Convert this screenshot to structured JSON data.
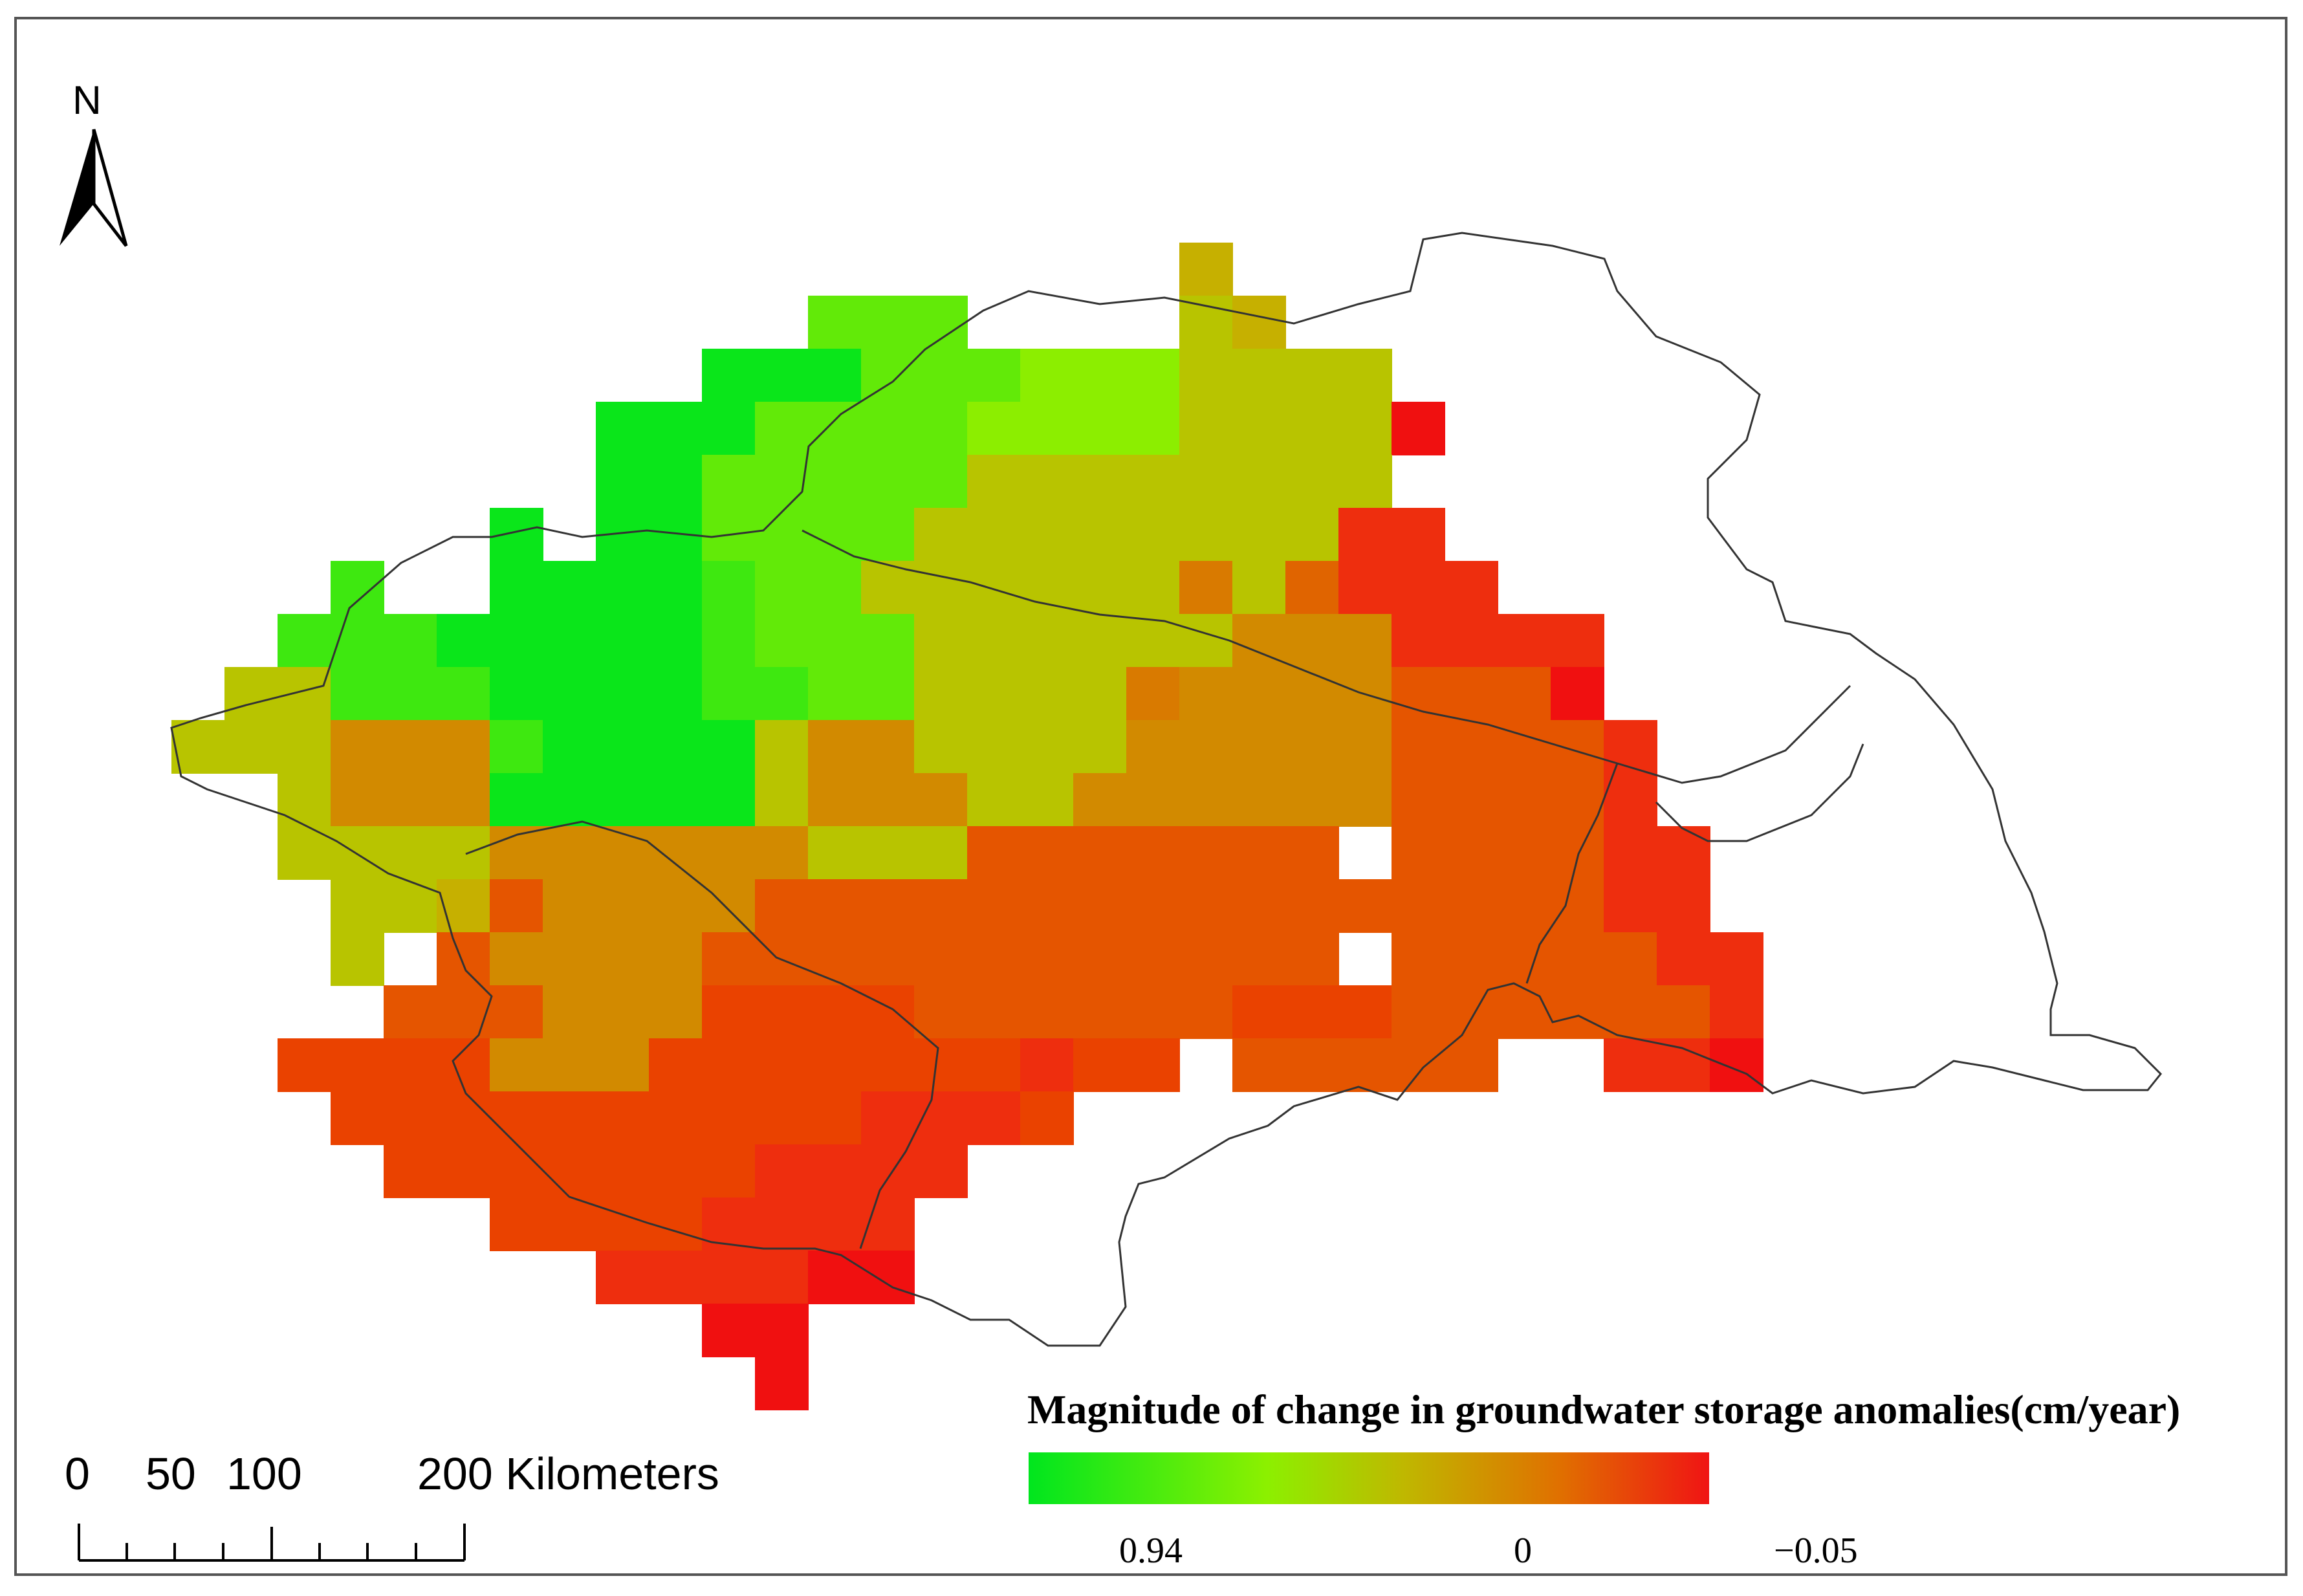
{
  "map": {
    "north_label": "N",
    "legend": {
      "title": "Magnitude of change in groundwater storage anomalies(cm/year)",
      "labels": {
        "high": "0.94",
        "mid": "0",
        "low": "−0.05"
      },
      "colors": [
        "#00e61e",
        "#8cf000",
        "#bfb800",
        "#e07000",
        "#f01414"
      ]
    },
    "scale_bar": {
      "labels": [
        "0",
        "50",
        "100",
        "200 Kilometers"
      ]
    },
    "boundary_color": "#333333",
    "grid_color_scale": "green (increase) to red (decrease)"
  }
}
